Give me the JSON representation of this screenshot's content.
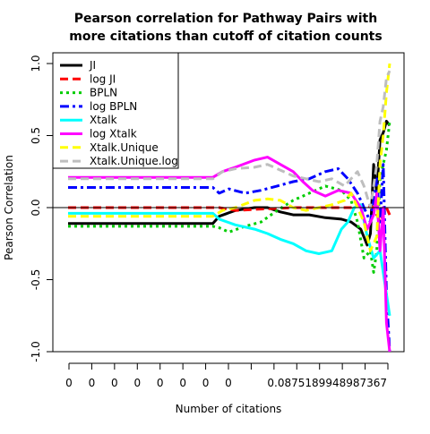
{
  "chart_data": {
    "type": "line",
    "title_lines": [
      "Pearson correlation for Pathway Pairs with",
      "more citations than cutoff of citation counts"
    ],
    "xlabel": "Number of citations",
    "ylabel": "Pearson Correlation",
    "x_tick_labels": [
      "0",
      "0",
      "0",
      "0",
      "0",
      "0",
      "0",
      "0",
      "0.0875189948987367",
      "",
      "",
      "",
      "",
      "",
      ""
    ],
    "y_ticks": [
      {
        "value": 1.0,
        "label": "1.0"
      },
      {
        "value": 0.5,
        "label": "0.5"
      },
      {
        "value": 0.0,
        "label": "0.0"
      },
      {
        "value": -0.5,
        "label": "-0.5"
      },
      {
        "value": -1.0,
        "label": "-1.0"
      }
    ],
    "ylim": [
      -1.0,
      1.0
    ],
    "x_index_range": [
      0,
      100
    ],
    "reference_line_y": 0,
    "legend_position": "top-left",
    "series": [
      {
        "name": "JI",
        "color": "#000000",
        "dash": "solid",
        "points": [
          [
            0,
            -0.11
          ],
          [
            45,
            -0.11
          ],
          [
            47,
            -0.06
          ],
          [
            52,
            -0.02
          ],
          [
            58,
            0.0
          ],
          [
            62,
            0.0
          ],
          [
            66,
            -0.03
          ],
          [
            70,
            -0.05
          ],
          [
            75,
            -0.05
          ],
          [
            80,
            -0.07
          ],
          [
            85,
            -0.08
          ],
          [
            88,
            -0.1
          ],
          [
            91,
            -0.15
          ],
          [
            93,
            -0.26
          ],
          [
            94,
            -0.18
          ],
          [
            95,
            0.3
          ],
          [
            96,
            0.1
          ],
          [
            97,
            0.47
          ],
          [
            98,
            0.52
          ],
          [
            99,
            0.6
          ],
          [
            100,
            0.57
          ]
        ]
      },
      {
        "name": "log JI",
        "color": "#ff0000",
        "dash": "dashed",
        "points": [
          [
            0,
            0.0
          ],
          [
            47,
            0.0
          ],
          [
            52,
            -0.02
          ],
          [
            60,
            -0.01
          ],
          [
            70,
            0.0
          ],
          [
            80,
            0.0
          ],
          [
            88,
            0.0
          ],
          [
            92,
            0.02
          ],
          [
            95,
            0.0
          ],
          [
            97,
            -0.1
          ],
          [
            98,
            -0.05
          ],
          [
            99,
            0.0
          ],
          [
            100,
            -0.05
          ]
        ]
      },
      {
        "name": "BPLN",
        "color": "#00cd00",
        "dash": "dotted",
        "points": [
          [
            0,
            -0.13
          ],
          [
            45,
            -0.13
          ],
          [
            47,
            -0.14
          ],
          [
            50,
            -0.17
          ],
          [
            55,
            -0.13
          ],
          [
            60,
            -0.1
          ],
          [
            65,
            -0.02
          ],
          [
            70,
            0.05
          ],
          [
            75,
            0.1
          ],
          [
            80,
            0.15
          ],
          [
            85,
            0.12
          ],
          [
            88,
            0.05
          ],
          [
            90,
            -0.1
          ],
          [
            92,
            -0.35
          ],
          [
            94,
            -0.3
          ],
          [
            95,
            -0.45
          ],
          [
            96,
            -0.3
          ],
          [
            97,
            0.2
          ],
          [
            98,
            0.3
          ],
          [
            99,
            0.4
          ],
          [
            100,
            0.6
          ]
        ]
      },
      {
        "name": "log BPLN",
        "color": "#0000ff",
        "dash": "dashdot",
        "points": [
          [
            0,
            0.14
          ],
          [
            45,
            0.14
          ],
          [
            47,
            0.1
          ],
          [
            50,
            0.13
          ],
          [
            55,
            0.1
          ],
          [
            60,
            0.12
          ],
          [
            65,
            0.15
          ],
          [
            70,
            0.18
          ],
          [
            75,
            0.2
          ],
          [
            80,
            0.25
          ],
          [
            84,
            0.27
          ],
          [
            87,
            0.2
          ],
          [
            90,
            0.1
          ],
          [
            92,
            0.0
          ],
          [
            94,
            -0.1
          ],
          [
            96,
            0.2
          ],
          [
            97,
            -0.1
          ],
          [
            98,
            0.3
          ],
          [
            99,
            -0.6
          ],
          [
            100,
            -1.0
          ]
        ]
      },
      {
        "name": "Xtalk",
        "color": "#00ffff",
        "dash": "solid",
        "points": [
          [
            0,
            -0.04
          ],
          [
            45,
            -0.04
          ],
          [
            47,
            -0.08
          ],
          [
            52,
            -0.12
          ],
          [
            58,
            -0.15
          ],
          [
            62,
            -0.18
          ],
          [
            66,
            -0.22
          ],
          [
            70,
            -0.25
          ],
          [
            74,
            -0.3
          ],
          [
            78,
            -0.32
          ],
          [
            82,
            -0.3
          ],
          [
            85,
            -0.15
          ],
          [
            87,
            -0.1
          ],
          [
            89,
            0.0
          ],
          [
            91,
            0.02
          ],
          [
            93,
            -0.2
          ],
          [
            95,
            -0.35
          ],
          [
            97,
            -0.3
          ],
          [
            99,
            -0.6
          ],
          [
            100,
            -0.75
          ]
        ]
      },
      {
        "name": "log Xtalk",
        "color": "#ff00ff",
        "dash": "solid",
        "points": [
          [
            0,
            0.21
          ],
          [
            45,
            0.21
          ],
          [
            48,
            0.25
          ],
          [
            52,
            0.28
          ],
          [
            58,
            0.33
          ],
          [
            62,
            0.35
          ],
          [
            66,
            0.3
          ],
          [
            70,
            0.25
          ],
          [
            73,
            0.18
          ],
          [
            76,
            0.12
          ],
          [
            80,
            0.08
          ],
          [
            84,
            0.12
          ],
          [
            88,
            0.1
          ],
          [
            91,
            0.0
          ],
          [
            93,
            -0.15
          ],
          [
            95,
            -0.05
          ],
          [
            96,
            0.1
          ],
          [
            97,
            -0.3
          ],
          [
            98,
            0.0
          ],
          [
            99,
            -0.8
          ],
          [
            100,
            -1.0
          ]
        ]
      },
      {
        "name": "Xtalk.Unique",
        "color": "#ffff00",
        "dash": "dashed",
        "points": [
          [
            0,
            -0.06
          ],
          [
            45,
            -0.06
          ],
          [
            48,
            -0.02
          ],
          [
            52,
            0.0
          ],
          [
            58,
            0.05
          ],
          [
            62,
            0.06
          ],
          [
            66,
            0.05
          ],
          [
            70,
            0.0
          ],
          [
            74,
            -0.02
          ],
          [
            78,
            0.0
          ],
          [
            82,
            0.02
          ],
          [
            86,
            0.05
          ],
          [
            88,
            0.1
          ],
          [
            90,
            0.0
          ],
          [
            92,
            -0.1
          ],
          [
            94,
            -0.3
          ],
          [
            96,
            -0.2
          ],
          [
            97,
            0.3
          ],
          [
            98,
            0.5
          ],
          [
            99,
            0.8
          ],
          [
            100,
            1.0
          ]
        ]
      },
      {
        "name": "Xtalk.Unique.log",
        "color": "#bebebe",
        "dash": "dashed",
        "points": [
          [
            0,
            0.2
          ],
          [
            45,
            0.2
          ],
          [
            48,
            0.25
          ],
          [
            52,
            0.27
          ],
          [
            58,
            0.28
          ],
          [
            62,
            0.3
          ],
          [
            66,
            0.26
          ],
          [
            70,
            0.22
          ],
          [
            74,
            0.2
          ],
          [
            78,
            0.18
          ],
          [
            82,
            0.2
          ],
          [
            86,
            0.15
          ],
          [
            88,
            0.2
          ],
          [
            90,
            0.25
          ],
          [
            92,
            0.15
          ],
          [
            94,
            0.0
          ],
          [
            96,
            0.3
          ],
          [
            97,
            0.6
          ],
          [
            98,
            0.7
          ],
          [
            99,
            0.9
          ],
          [
            100,
            0.95
          ]
        ]
      }
    ]
  }
}
